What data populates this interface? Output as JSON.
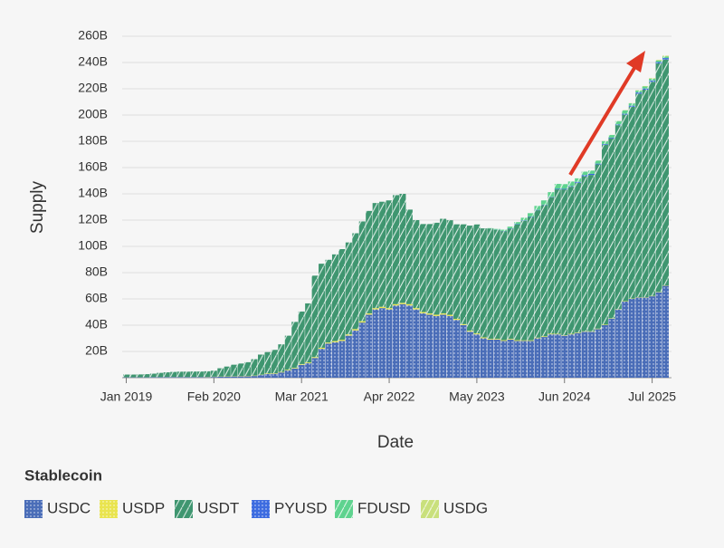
{
  "chart_data": {
    "type": "stacked_bar",
    "x_label": "Date",
    "y_label": "Supply",
    "legend_title": "Stablecoin",
    "legend": "bottom-left",
    "grid": true,
    "ylim": [
      0,
      260
    ],
    "yticks": [
      {
        "value": 20,
        "label": "20B"
      },
      {
        "value": 40,
        "label": "40B"
      },
      {
        "value": 60,
        "label": "60B"
      },
      {
        "value": 80,
        "label": "80B"
      },
      {
        "value": 100,
        "label": "100B"
      },
      {
        "value": 120,
        "label": "120B"
      },
      {
        "value": 140,
        "label": "140B"
      },
      {
        "value": 160,
        "label": "160B"
      },
      {
        "value": 180,
        "label": "180B"
      },
      {
        "value": 200,
        "label": "200B"
      },
      {
        "value": 220,
        "label": "220B"
      },
      {
        "value": 240,
        "label": "240B"
      },
      {
        "value": 260,
        "label": "260B"
      }
    ],
    "xticks": [
      {
        "value": "2019-01",
        "label": "Jan 2019"
      },
      {
        "value": "2020-02",
        "label": "Feb 2020"
      },
      {
        "value": "2021-03",
        "label": "Mar 2021"
      },
      {
        "value": "2022-04",
        "label": "Apr 2022"
      },
      {
        "value": "2023-05",
        "label": "May 2023"
      },
      {
        "value": "2024-06",
        "label": "Jun 2024"
      },
      {
        "value": "2025-07",
        "label": "Jul 2025"
      }
    ],
    "categories": [
      "2019-01",
      "2019-02",
      "2019-03",
      "2019-04",
      "2019-05",
      "2019-06",
      "2019-07",
      "2019-08",
      "2019-09",
      "2019-10",
      "2019-11",
      "2019-12",
      "2020-01",
      "2020-02",
      "2020-03",
      "2020-04",
      "2020-05",
      "2020-06",
      "2020-07",
      "2020-08",
      "2020-09",
      "2020-10",
      "2020-11",
      "2020-12",
      "2021-01",
      "2021-02",
      "2021-03",
      "2021-04",
      "2021-05",
      "2021-06",
      "2021-07",
      "2021-08",
      "2021-09",
      "2021-10",
      "2021-11",
      "2021-12",
      "2022-01",
      "2022-02",
      "2022-03",
      "2022-04",
      "2022-05",
      "2022-06",
      "2022-07",
      "2022-08",
      "2022-09",
      "2022-10",
      "2022-11",
      "2022-12",
      "2023-01",
      "2023-02",
      "2023-03",
      "2023-04",
      "2023-05",
      "2023-06",
      "2023-07",
      "2023-08",
      "2023-09",
      "2023-10",
      "2023-11",
      "2023-12",
      "2024-01",
      "2024-02",
      "2024-03",
      "2024-04",
      "2024-05",
      "2024-06",
      "2024-07",
      "2024-08",
      "2024-09",
      "2024-10",
      "2024-11",
      "2024-12",
      "2025-01",
      "2025-02",
      "2025-03",
      "2025-04",
      "2025-05",
      "2025-06",
      "2025-07",
      "2025-08",
      "2025-09"
    ],
    "series": [
      {
        "name": "USDC",
        "color": "#4a6db8",
        "pattern": "dots",
        "values": [
          0.3,
          0.3,
          0.3,
          0.3,
          0.4,
          0.4,
          0.5,
          0.5,
          0.5,
          0.5,
          0.5,
          0.5,
          0.5,
          0.6,
          0.7,
          0.8,
          0.9,
          1.0,
          1.1,
          1.3,
          2.0,
          2.8,
          3.0,
          4.0,
          5.5,
          7.0,
          9.8,
          11,
          15,
          22,
          26,
          27,
          28,
          32,
          36,
          42,
          48,
          52,
          53,
          52,
          55,
          56,
          55,
          52,
          49,
          48,
          47,
          48,
          47,
          44,
          40,
          35,
          33,
          30,
          29,
          29,
          28,
          29,
          28,
          28,
          28,
          30,
          31,
          33,
          33,
          32,
          33,
          34,
          35,
          35,
          37,
          40,
          45,
          52,
          58,
          60,
          61,
          61,
          62,
          65,
          70
        ]
      },
      {
        "name": "USDP",
        "color": "#e9e44f",
        "pattern": "dots",
        "values": [
          0.1,
          0.1,
          0.1,
          0.1,
          0.1,
          0.1,
          0.1,
          0.1,
          0.1,
          0.1,
          0.1,
          0.1,
          0.2,
          0.2,
          0.2,
          0.2,
          0.2,
          0.3,
          0.3,
          0.3,
          0.3,
          0.4,
          0.4,
          0.4,
          0.5,
          0.5,
          0.6,
          0.6,
          0.7,
          0.8,
          0.8,
          0.9,
          0.9,
          1.0,
          1.0,
          1.0,
          1.0,
          1.0,
          1.0,
          1.0,
          1.0,
          1.0,
          1.0,
          1.0,
          1.0,
          1.0,
          1.0,
          1.0,
          0.9,
          0.8,
          0.8,
          0.8,
          0.7,
          0.7,
          0.6,
          0.6,
          0.6,
          0.6,
          0.6,
          0.5,
          0.5,
          0.5,
          0.5,
          0.5,
          0.4,
          0.4,
          0.4,
          0.4,
          0.4,
          0.4,
          0.4,
          0.4,
          0.3,
          0.3,
          0.3,
          0.3,
          0.3,
          0.3,
          0.3,
          0.3,
          0.3
        ]
      },
      {
        "name": "USDT",
        "color": "#3f9670",
        "pattern": "hatch",
        "values": [
          2.0,
          2.0,
          2.1,
          2.3,
          2.6,
          3.2,
          3.5,
          3.8,
          4.0,
          4.0,
          4.1,
          4.1,
          4.2,
          4.5,
          6.3,
          7.5,
          8.8,
          9.5,
          10.4,
          12.5,
          15.3,
          16.3,
          17.8,
          21,
          26,
          35,
          40,
          45,
          62,
          64,
          63,
          66,
          69,
          70,
          73,
          76,
          78,
          80,
          80,
          82,
          83,
          83,
          72,
          67,
          67,
          68,
          70,
          72,
          72,
          72,
          76,
          80,
          83,
          83,
          84,
          83,
          83,
          84,
          88,
          91,
          94,
          97,
          100,
          104,
          110,
          111,
          112,
          114,
          118,
          119,
          125,
          137,
          137,
          140,
          142,
          146,
          155,
          158,
          163,
          174,
          172
        ]
      },
      {
        "name": "PYUSD",
        "color": "#3d6ce0",
        "pattern": "dots",
        "values": [
          0,
          0,
          0,
          0,
          0,
          0,
          0,
          0,
          0,
          0,
          0,
          0,
          0,
          0,
          0,
          0,
          0,
          0,
          0,
          0,
          0,
          0,
          0,
          0,
          0,
          0,
          0,
          0,
          0,
          0,
          0,
          0,
          0,
          0,
          0,
          0,
          0,
          0,
          0,
          0,
          0,
          0,
          0,
          0,
          0,
          0,
          0,
          0,
          0,
          0,
          0,
          0,
          0,
          0,
          0,
          0.1,
          0.2,
          0.2,
          0.3,
          0.3,
          0.3,
          0.3,
          0.3,
          0.3,
          0.4,
          0.4,
          0.5,
          0.7,
          0.9,
          0.8,
          0.6,
          0.5,
          0.5,
          0.6,
          0.7,
          0.8,
          0.9,
          0.9,
          1.0,
          1.0,
          1.1
        ]
      },
      {
        "name": "FDUSD",
        "color": "#5fd38f",
        "pattern": "hatch",
        "values": [
          0,
          0,
          0,
          0,
          0,
          0,
          0,
          0,
          0,
          0,
          0,
          0,
          0,
          0,
          0,
          0,
          0,
          0,
          0,
          0,
          0,
          0,
          0,
          0,
          0,
          0,
          0,
          0,
          0,
          0,
          0,
          0,
          0,
          0,
          0,
          0,
          0,
          0,
          0,
          0,
          0,
          0,
          0,
          0,
          0,
          0,
          0,
          0,
          0,
          0,
          0,
          0,
          0,
          0,
          0.3,
          0.6,
          0.9,
          1.2,
          1.6,
          2.0,
          2.5,
          3.0,
          3.2,
          3.5,
          3.8,
          3.6,
          3.5,
          2.7,
          2.6,
          2.5,
          2.3,
          2.2,
          2.0,
          2.5,
          2.6,
          1.8,
          1.4,
          1.5,
          1.3,
          1.2,
          1.1
        ]
      },
      {
        "name": "USDG",
        "color": "#c9e07c",
        "pattern": "hatch",
        "values": [
          0,
          0,
          0,
          0,
          0,
          0,
          0,
          0,
          0,
          0,
          0,
          0,
          0,
          0,
          0,
          0,
          0,
          0,
          0,
          0,
          0,
          0,
          0,
          0,
          0,
          0,
          0,
          0,
          0,
          0,
          0,
          0,
          0,
          0,
          0,
          0,
          0,
          0,
          0,
          0,
          0,
          0,
          0,
          0,
          0,
          0,
          0,
          0,
          0,
          0,
          0,
          0,
          0,
          0,
          0,
          0,
          0,
          0,
          0,
          0,
          0,
          0,
          0,
          0,
          0,
          0,
          0,
          0,
          0,
          0,
          0.1,
          0.1,
          0.1,
          0.1,
          0.2,
          0.2,
          0.3,
          0.4,
          0.5,
          0.6,
          0.7
        ]
      }
    ]
  }
}
